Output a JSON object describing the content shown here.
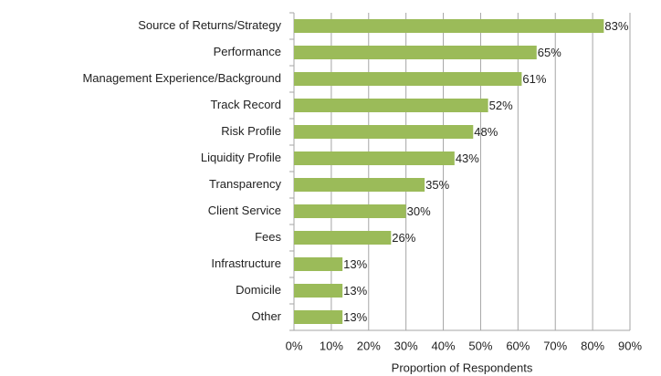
{
  "chart_data": {
    "type": "bar",
    "orientation": "horizontal",
    "x_label": "Proportion of Respondents",
    "categories": [
      "Source of Returns/Strategy",
      "Performance",
      "Management Experience/Background",
      "Track Record",
      "Risk Profile",
      "Liquidity Profile",
      "Transparency",
      "Client Service",
      "Fees",
      "Infrastructure",
      "Domicile",
      "Other"
    ],
    "values": [
      83,
      65,
      61,
      52,
      48,
      43,
      35,
      30,
      26,
      13,
      13,
      13
    ],
    "value_labels": [
      "83%",
      "65%",
      "61%",
      "52%",
      "48%",
      "43%",
      "35%",
      "30%",
      "26%",
      "13%",
      "13%",
      "13%"
    ],
    "color": "#9bbb59",
    "xlim": [
      0,
      90
    ],
    "xticks": [
      {
        "value": 0,
        "label": "0%"
      },
      {
        "value": 10,
        "label": "10%"
      },
      {
        "value": 20,
        "label": "20%"
      },
      {
        "value": 30,
        "label": "30%"
      },
      {
        "value": 40,
        "label": "40%"
      },
      {
        "value": 50,
        "label": "50%"
      },
      {
        "value": 60,
        "label": "60%"
      },
      {
        "value": 70,
        "label": "70%"
      },
      {
        "value": 80,
        "label": "80%"
      },
      {
        "value": 90,
        "label": "90%"
      }
    ],
    "grid": true
  }
}
